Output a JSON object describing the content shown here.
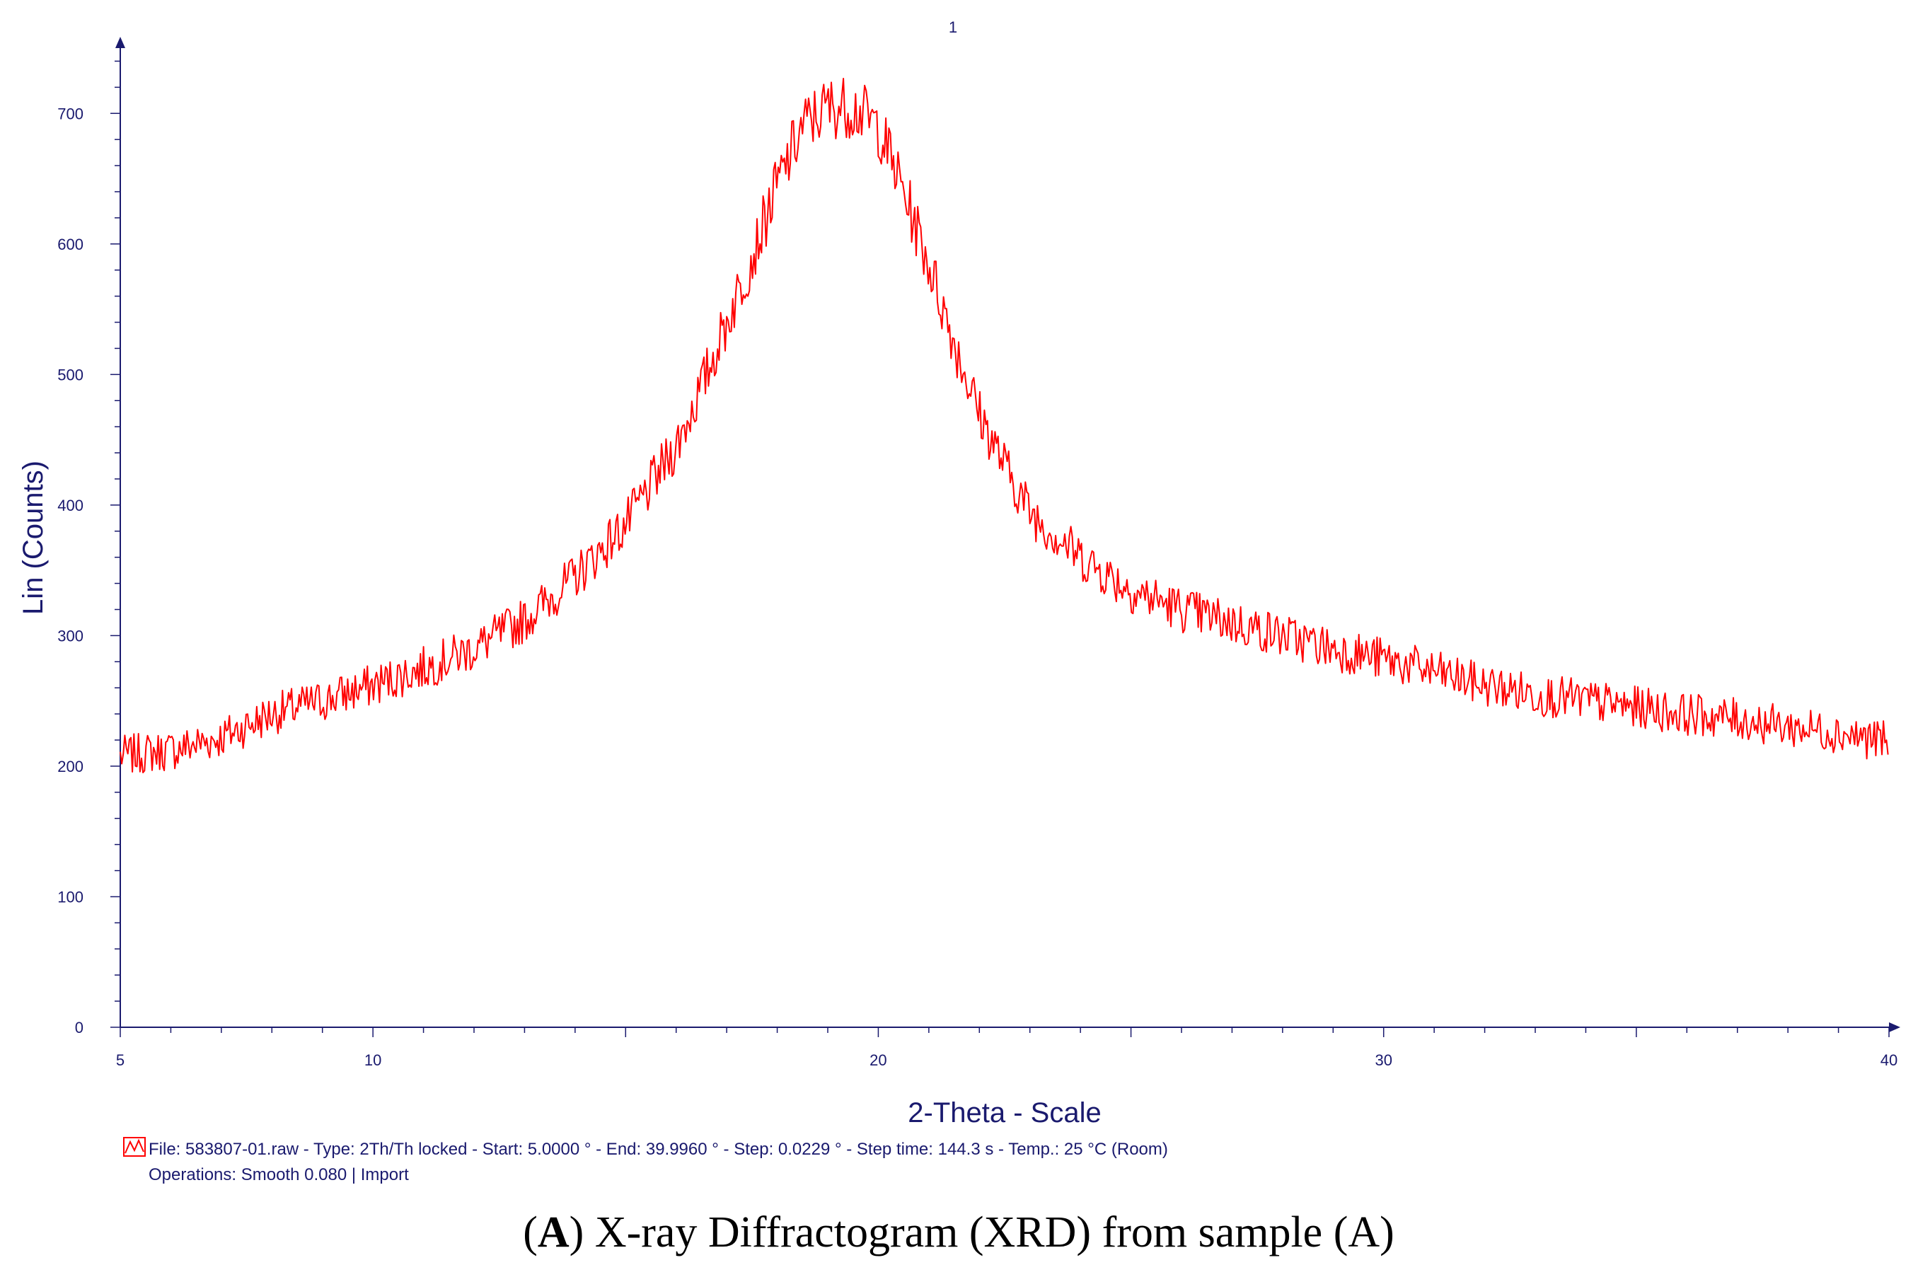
{
  "chart_data": {
    "type": "line",
    "title": "1",
    "xlabel": "2-Theta - Scale",
    "ylabel": "Lin (Counts)",
    "xlim": [
      5,
      40
    ],
    "ylim": [
      0,
      750
    ],
    "x_ticks": [
      5,
      10,
      20,
      30,
      40
    ],
    "y_ticks": [
      0,
      100,
      200,
      300,
      400,
      500,
      600,
      700
    ],
    "series": [
      {
        "name": "583807-01.raw",
        "color": "#ff0000",
        "x": [
          5,
          6,
          7,
          8,
          9,
          10,
          11,
          12,
          13,
          14,
          15,
          16,
          16.5,
          17,
          17.5,
          18,
          18.5,
          19,
          19.5,
          20,
          20.5,
          21,
          21.5,
          22,
          22.5,
          23,
          24,
          25,
          26,
          27,
          28,
          29,
          30,
          31,
          32,
          33,
          34,
          35,
          36,
          37,
          38,
          39,
          40
        ],
        "values": [
          208,
          212,
          222,
          240,
          250,
          262,
          275,
          290,
          312,
          345,
          385,
          445,
          490,
          540,
          590,
          645,
          690,
          705,
          705,
          690,
          640,
          585,
          525,
          470,
          430,
          395,
          360,
          335,
          320,
          310,
          300,
          290,
          282,
          272,
          262,
          255,
          250,
          245,
          240,
          236,
          230,
          226,
          218
        ]
      }
    ],
    "legend": {
      "file_line": "File: 583807-01.raw - Type: 2Th/Th locked - Start: 5.0000 ° - End: 39.9960 ° - Step: 0.0229 ° - Step time: 144.3 s - Temp.: 25 °C (Room)",
      "operations_line": "Operations: Smooth 0.080 | Import"
    },
    "caption": {
      "label": "A",
      "open": "(",
      "close": ")",
      "text": " X-ray Diffractogram (XRD) from sample (A)"
    }
  },
  "colors": {
    "axis": "#1a1a6e",
    "series": "#ff0000"
  }
}
